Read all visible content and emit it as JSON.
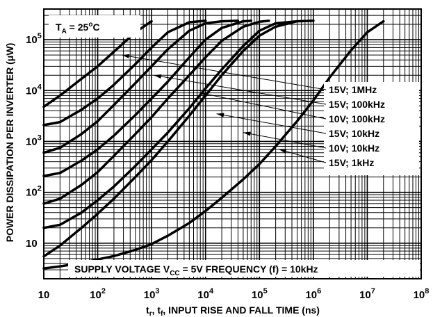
{
  "chart_data": {
    "type": "line",
    "title": "",
    "xlabel": "tr, tf, INPUT RISE AND FALL TIME (ns)",
    "xlabel_parts": {
      "main1": "t",
      "sub1": "r",
      "sep": ", t",
      "sub2": "f",
      "rest": ", INPUT RISE AND FALL TIME (ns)"
    },
    "ylabel": "POWER DISSIPATION PER INVERTER (μW)",
    "x_scale": "log",
    "y_scale": "log",
    "xlim": [
      10,
      100000000
    ],
    "ylim": [
      2,
      400000
    ],
    "grid": true,
    "x_ticks": [
      {
        "value": 10,
        "mantissa": "10",
        "exp": ""
      },
      {
        "value": 100,
        "mantissa": "10",
        "exp": "2"
      },
      {
        "value": 1000,
        "mantissa": "10",
        "exp": "3"
      },
      {
        "value": 10000,
        "mantissa": "10",
        "exp": "4"
      },
      {
        "value": 100000,
        "mantissa": "10",
        "exp": "5"
      },
      {
        "value": 1000000,
        "mantissa": "10",
        "exp": "6"
      },
      {
        "value": 10000000,
        "mantissa": "10",
        "exp": "7"
      },
      {
        "value": 100000000,
        "mantissa": "10",
        "exp": "8"
      }
    ],
    "y_ticks": [
      {
        "value": 10,
        "mantissa": "10",
        "exp": ""
      },
      {
        "value": 100,
        "mantissa": "10",
        "exp": "2"
      },
      {
        "value": 1000,
        "mantissa": "10",
        "exp": "3"
      },
      {
        "value": 10000,
        "mantissa": "10",
        "exp": "4"
      },
      {
        "value": 100000,
        "mantissa": "10",
        "exp": "5"
      }
    ],
    "annotations": {
      "temperature": {
        "main": "T",
        "sub": "A",
        "rest": " = 25",
        "sup": "o",
        "unit": "C"
      },
      "supply": {
        "pre": "SUPPLY VOLTAGE V",
        "sub": "CC",
        "post": " = 5V FREQUENCY (f) = 10kHz"
      }
    },
    "series": [
      {
        "name": "",
        "x": [
          10,
          20,
          50,
          100,
          200,
          500,
          1000,
          2000,
          5000,
          10000,
          20000,
          50000,
          100000,
          200000,
          500000,
          1000000,
          2000000,
          5000000,
          10000000,
          20000000
        ],
        "y": [
          3.2,
          3.5,
          4.1,
          4.8,
          5.6,
          7.4,
          9.6,
          14,
          25,
          43,
          78,
          180,
          360,
          800,
          2500,
          6400,
          18000,
          62000,
          140000,
          230000
        ]
      },
      {
        "name": "",
        "x": [
          10,
          20,
          50,
          100,
          200,
          500,
          1000,
          2000,
          5000,
          10000,
          20000,
          50000,
          100000,
          200000,
          500000
        ],
        "y": [
          5.5,
          9,
          20,
          38,
          75,
          200,
          430,
          1000,
          3200,
          8000,
          20000,
          60000,
          120000,
          180000,
          230000
        ]
      },
      {
        "name": "15V; 1kHz",
        "x": [
          10,
          20,
          50,
          100,
          200,
          500,
          1000,
          2000,
          5000,
          10000,
          20000,
          50000,
          100000,
          200000,
          500000,
          1000000
        ],
        "y": [
          20,
          23,
          40,
          70,
          130,
          330,
          700,
          1500,
          4500,
          11000,
          26000,
          75000,
          150000,
          210000,
          230000,
          235000
        ]
      },
      {
        "name": "10V; 10kHz",
        "x": [
          10,
          20,
          50,
          100,
          200,
          500,
          1000,
          2000,
          5000,
          10000,
          20000,
          50000,
          100000,
          150000
        ],
        "y": [
          60,
          75,
          140,
          250,
          520,
          1400,
          3000,
          7000,
          20000,
          45000,
          95000,
          180000,
          225000,
          235000
        ]
      },
      {
        "name": "15V; 10kHz",
        "x": [
          10,
          20,
          50,
          100,
          200,
          500,
          1000,
          2000,
          5000,
          10000,
          20000,
          50000,
          70000
        ],
        "y": [
          210,
          240,
          420,
          700,
          1300,
          3300,
          7000,
          15000,
          45000,
          100000,
          170000,
          230000,
          235000
        ]
      },
      {
        "name": "10V; 100kHz",
        "x": [
          10,
          20,
          50,
          100,
          200,
          500,
          1000,
          2000,
          5000,
          10000,
          20000,
          40000
        ],
        "y": [
          600,
          750,
          1400,
          2500,
          5200,
          14000,
          30000,
          65000,
          150000,
          210000,
          230000,
          235000
        ]
      },
      {
        "name": "15V; 100kHz",
        "x": [
          10,
          20,
          50,
          100,
          200,
          500,
          1000,
          2000,
          5000,
          10000
        ],
        "y": [
          2100,
          2400,
          4200,
          7000,
          13000,
          33000,
          70000,
          140000,
          220000,
          235000
        ]
      },
      {
        "name": "15V; 1MHz",
        "x": [
          10,
          20,
          50,
          100,
          200,
          500,
          1000
        ],
        "y": [
          4800,
          8000,
          17000,
          30000,
          58000,
          140000,
          230000
        ]
      }
    ],
    "callouts": [
      {
        "label": "15V; 1MHz",
        "target": [
          280,
          50000
        ]
      },
      {
        "label": "15V; 100kHz",
        "target": [
          1100,
          20000
        ]
      },
      {
        "label": "10V; 100kHz",
        "target": [
          8000,
          9000
        ]
      },
      {
        "label": "15V; 10kHz",
        "target": [
          16000,
          3500
        ]
      },
      {
        "label": "10V; 10kHz",
        "target": [
          50000,
          1500
        ]
      },
      {
        "label": "15V; 1kHz",
        "target": [
          230000,
          700
        ]
      }
    ]
  }
}
